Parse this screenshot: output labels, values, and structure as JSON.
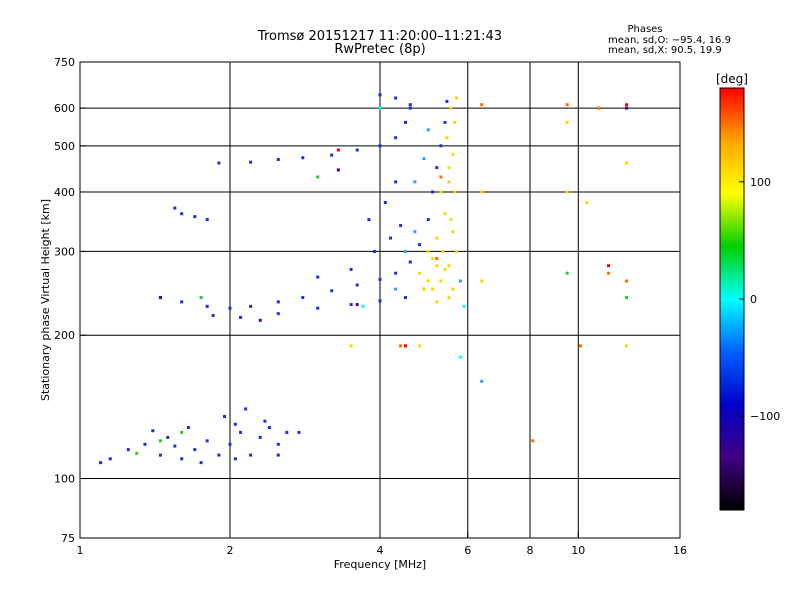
{
  "chart_data": {
    "type": "scatter",
    "title": "Tromsø 20151217 11:20:00–11:21:43",
    "subtitle": "RwPretec (8p)",
    "xlabel": "Frequency [MHz]",
    "ylabel": "Stationary phase Virtual Height [km]",
    "x_scale": "log",
    "y_scale": "log",
    "xlim": [
      1,
      16
    ],
    "ylim": [
      75,
      750
    ],
    "x_ticks": [
      1,
      2,
      4,
      6,
      8,
      10,
      16
    ],
    "y_ticks": [
      75,
      100,
      200,
      300,
      400,
      500,
      600,
      750
    ],
    "grid": true,
    "stats": {
      "heading": "Phases",
      "line_o": "mean, sd,O: −95.4, 16.9",
      "line_x": "mean, sd,X:  90.5, 19.9"
    },
    "colorbar": {
      "label": "[deg]",
      "range": [
        -180,
        180
      ],
      "ticks": [
        100,
        0,
        -100
      ],
      "colors": [
        "#ff0000",
        "#ffa500",
        "#ffff00",
        "#00d000",
        "#00ffff",
        "#0060ff",
        "#0000c8",
        "#400080",
        "#000000"
      ]
    },
    "series": [
      {
        "color": "#1e2de0",
        "points": [
          [
            1.1,
            108
          ],
          [
            1.15,
            110
          ],
          [
            1.25,
            115
          ],
          [
            1.35,
            118
          ],
          [
            1.45,
            112
          ],
          [
            1.5,
            122
          ],
          [
            1.55,
            117
          ],
          [
            1.6,
            110
          ],
          [
            1.7,
            115
          ],
          [
            1.8,
            120
          ],
          [
            1.9,
            112
          ],
          [
            2.0,
            118
          ],
          [
            2.05,
            130
          ],
          [
            2.1,
            125
          ],
          [
            2.2,
            112
          ],
          [
            2.3,
            122
          ],
          [
            2.4,
            128
          ],
          [
            2.5,
            118
          ],
          [
            2.6,
            125
          ],
          [
            2.75,
            125
          ],
          [
            1.4,
            126
          ],
          [
            1.65,
            128
          ],
          [
            1.95,
            135
          ],
          [
            2.15,
            140
          ],
          [
            2.35,
            132
          ],
          [
            1.75,
            108
          ],
          [
            2.05,
            110
          ],
          [
            2.5,
            112
          ],
          [
            1.45,
            240
          ],
          [
            1.6,
            235
          ],
          [
            1.8,
            230
          ],
          [
            2.0,
            228
          ],
          [
            2.2,
            230
          ],
          [
            2.5,
            235
          ],
          [
            2.8,
            240
          ],
          [
            3.2,
            248
          ],
          [
            3.6,
            255
          ],
          [
            4.0,
            262
          ],
          [
            4.3,
            270
          ],
          [
            4.6,
            285
          ],
          [
            4.8,
            310
          ],
          [
            5.0,
            350
          ],
          [
            5.1,
            400
          ],
          [
            5.2,
            450
          ],
          [
            5.3,
            500
          ],
          [
            5.4,
            560
          ],
          [
            5.45,
            620
          ],
          [
            1.85,
            220
          ],
          [
            2.1,
            218
          ],
          [
            2.5,
            222
          ],
          [
            3.0,
            228
          ],
          [
            3.5,
            232
          ],
          [
            4.0,
            236
          ],
          [
            4.5,
            240
          ],
          [
            4.9,
            250
          ],
          [
            1.9,
            460
          ],
          [
            2.2,
            462
          ],
          [
            2.5,
            468
          ],
          [
            2.8,
            472
          ],
          [
            3.2,
            478
          ],
          [
            3.6,
            490
          ],
          [
            4.0,
            500
          ],
          [
            4.3,
            520
          ],
          [
            4.5,
            560
          ],
          [
            4.6,
            610
          ],
          [
            4.0,
            640
          ],
          [
            4.3,
            630
          ],
          [
            4.6,
            600
          ],
          [
            1.6,
            360
          ],
          [
            1.7,
            355
          ],
          [
            1.8,
            350
          ],
          [
            1.55,
            370
          ],
          [
            3.8,
            350
          ],
          [
            4.1,
            380
          ],
          [
            4.3,
            420
          ],
          [
            3.9,
            300
          ],
          [
            4.2,
            320
          ],
          [
            4.4,
            340
          ],
          [
            3.5,
            275
          ],
          [
            3.0,
            265
          ]
        ]
      },
      {
        "color": "#ffd400",
        "points": [
          [
            5.0,
            300
          ],
          [
            5.2,
            320
          ],
          [
            5.4,
            360
          ],
          [
            5.5,
            420
          ],
          [
            5.6,
            480
          ],
          [
            5.65,
            560
          ],
          [
            5.7,
            630
          ],
          [
            5.5,
            280
          ],
          [
            5.3,
            260
          ],
          [
            5.1,
            250
          ],
          [
            5.6,
            250
          ],
          [
            5.5,
            240
          ],
          [
            5.2,
            235
          ],
          [
            4.8,
            270
          ],
          [
            5.45,
            520
          ],
          [
            5.55,
            600
          ],
          [
            5.65,
            400
          ],
          [
            5.35,
            300
          ],
          [
            5.6,
            330
          ],
          [
            5.2,
            280
          ],
          [
            6.4,
            400
          ],
          [
            6.4,
            260
          ],
          [
            9.5,
            560
          ],
          [
            9.5,
            400
          ],
          [
            10.4,
            380
          ],
          [
            12.5,
            460
          ],
          [
            12.5,
            190
          ],
          [
            4.8,
            190
          ],
          [
            3.5,
            190
          ]
        ]
      },
      {
        "color": "#e8e800",
        "points": [
          [
            5.3,
            400
          ],
          [
            5.5,
            450
          ],
          [
            5.1,
            290
          ],
          [
            5.4,
            275
          ],
          [
            5.0,
            260
          ],
          [
            5.55,
            350
          ],
          [
            4.9,
            250
          ],
          [
            5.7,
            300
          ]
        ]
      },
      {
        "color": "#2fa0ff",
        "points": [
          [
            4.7,
            420
          ],
          [
            4.9,
            470
          ],
          [
            5.0,
            540
          ],
          [
            4.5,
            300
          ],
          [
            4.7,
            330
          ],
          [
            4.3,
            250
          ],
          [
            5.8,
            260
          ],
          [
            6.4,
            160
          ]
        ]
      },
      {
        "color": "#ff6a00",
        "points": [
          [
            5.3,
            430
          ],
          [
            5.2,
            290
          ],
          [
            4.4,
            190
          ],
          [
            8.1,
            120
          ],
          [
            10.1,
            190
          ],
          [
            11.0,
            600
          ],
          [
            11.5,
            270
          ],
          [
            12.5,
            260
          ],
          [
            6.4,
            610
          ],
          [
            9.5,
            610
          ]
        ]
      },
      {
        "color": "#ff0000",
        "points": [
          [
            3.3,
            490
          ],
          [
            4.5,
            190
          ],
          [
            11.5,
            280
          ],
          [
            12.5,
            610
          ]
        ]
      },
      {
        "color": "#28c828",
        "points": [
          [
            1.3,
            113
          ],
          [
            1.45,
            120
          ],
          [
            1.6,
            125
          ],
          [
            1.75,
            240
          ],
          [
            3.0,
            430
          ],
          [
            12.5,
            240
          ],
          [
            9.5,
            270
          ]
        ]
      },
      {
        "color": "#00ffff",
        "points": [
          [
            4.0,
            600
          ],
          [
            3.7,
            230
          ],
          [
            5.9,
            230
          ],
          [
            5.8,
            180
          ]
        ]
      },
      {
        "color": "#50008c",
        "points": [
          [
            3.3,
            445
          ],
          [
            3.6,
            232
          ],
          [
            2.3,
            215
          ],
          [
            1.45,
            240
          ],
          [
            12.5,
            600
          ]
        ]
      }
    ]
  }
}
